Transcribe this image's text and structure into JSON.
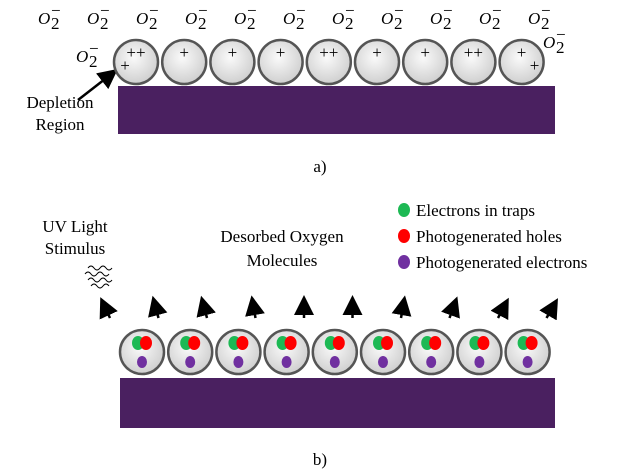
{
  "oxygen_label": {
    "base": "O",
    "sub": "2",
    "sup": "−"
  },
  "panel_a": {
    "depletion_label": [
      "Depletion",
      "Region"
    ],
    "caption": "a)",
    "particles": [
      [
        "++",
        "+"
      ],
      [
        "+"
      ],
      [
        "+"
      ],
      [
        "+"
      ],
      [
        "++"
      ],
      [
        "+"
      ],
      [
        "+"
      ],
      [
        "++"
      ],
      [
        "+",
        "+"
      ]
    ]
  },
  "panel_b": {
    "uv_label": [
      "UV Light",
      "Stimulus"
    ],
    "desorbed_label": [
      "Desorbed Oxygen",
      "Molecules"
    ],
    "legend": [
      {
        "color": "#1db954",
        "label": "Electrons in traps"
      },
      {
        "color": "#ff0000",
        "label": "Photogenerated holes"
      },
      {
        "color": "#7030a0",
        "label": "Photogenerated electrons"
      }
    ],
    "caption": "b)"
  }
}
